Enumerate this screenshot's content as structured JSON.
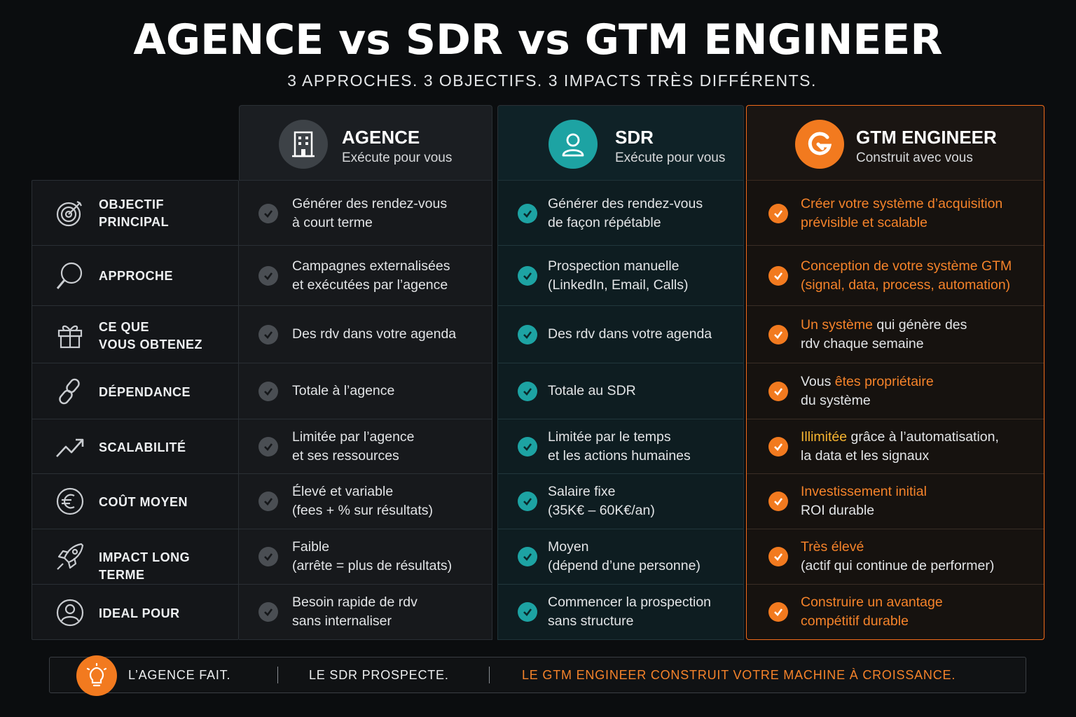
{
  "title": "AGENCE vs SDR vs GTM ENGINEER",
  "subtitle": "3 APPROCHES. 3 OBJECTIFS. 3 IMPACTS TRÈS DIFFÉRENTS.",
  "columns": [
    {
      "name": "AGENCE",
      "sub": "Exécute pour vous",
      "icon": "building-icon"
    },
    {
      "name": "SDR",
      "sub": "Exécute pour vous",
      "icon": "person-icon"
    },
    {
      "name": "GTM ENGINEER",
      "sub": "Construit avec vous",
      "icon": "gtm-logo-icon"
    }
  ],
  "rows": [
    {
      "label1": "OBJECTIF",
      "label2": "PRINCIPAL",
      "icon": "target-icon",
      "agence1": "Générer des rendez-vous",
      "agence2": "à court terme",
      "sdr1": "Générer des rendez-vous",
      "sdr2": "de façon répétable",
      "gtm1": "Créer votre système d’acquisition",
      "gtm2": "prévisible et scalable"
    },
    {
      "label1": "APPROCHE",
      "label2": "",
      "icon": "search-icon",
      "agence1": "Campagnes externalisées",
      "agence2": "et exécutées par l’agence",
      "sdr1": "Prospection manuelle",
      "sdr2": "(LinkedIn, Email, Calls)",
      "gtm1": "Conception de votre système GTM",
      "gtm2": "(signal, data, process, automation)"
    },
    {
      "label1": "CE QUE",
      "label2": "VOUS OBTENEZ",
      "icon": "gift-icon",
      "agence1": "Des rdv dans votre agenda",
      "agence2": "",
      "sdr1": "Des rdv dans votre agenda",
      "sdr2": "",
      "gtm1a": "Un système",
      "gtm1b": " qui génère des",
      "gtm2": "rdv chaque semaine"
    },
    {
      "label1": "DÉPENDANCE",
      "label2": "",
      "icon": "link-icon",
      "agence1": "Totale à l’agence",
      "agence2": "",
      "sdr1": "Totale au SDR",
      "sdr2": "",
      "gtm1a": "Vous ",
      "gtm1b": "êtes propriétaire",
      "gtm2": "du système"
    },
    {
      "label1": "SCALABILITÉ",
      "label2": "",
      "icon": "trend-up-icon",
      "agence1": "Limitée par l’agence",
      "agence2": "et ses ressources",
      "sdr1": "Limitée par le temps",
      "sdr2": "et les actions humaines",
      "gtm1a": "Illimitée",
      "gtm1b": " grâce à l’automatisation,",
      "gtm2": "la data et les signaux"
    },
    {
      "label1": "COÛT MOYEN",
      "label2": "",
      "icon": "euro-icon",
      "agence1": "Élevé et variable",
      "agence2": "(fees + % sur résultats)",
      "sdr1": "Salaire fixe",
      "sdr2": "(35K€ – 60K€/an)",
      "gtm1": "Investissement initial",
      "gtm2": "ROI durable"
    },
    {
      "label1": "IMPACT LONG TERME",
      "label2": "",
      "icon": "rocket-icon",
      "agence1": "Faible",
      "agence2": "(arrête = plus de résultats)",
      "sdr1": "Moyen",
      "sdr2": "(dépend d’une personne)",
      "gtm1": "Très élevé",
      "gtm2": "(actif qui continue de performer)"
    },
    {
      "label1": "IDEAL POUR",
      "label2": "",
      "icon": "user-circle-icon",
      "agence1": "Besoin rapide de rdv",
      "agence2": "sans internaliser",
      "sdr1": "Commencer la prospection",
      "sdr2": "sans structure",
      "gtm1": "Construire un avantage",
      "gtm2": "compétitif durable"
    }
  ],
  "footer": {
    "a": "L’AGENCE FAIT.",
    "b": "LE SDR PROSPECTE.",
    "c": "LE GTM ENGINEER CONSTRUIT VOTRE MACHINE À CROISSANCE."
  },
  "colors": {
    "accent": "#f27a1f",
    "teal": "#1da3a3",
    "gray": "#4a4e53",
    "highlight": "#f7b531"
  }
}
